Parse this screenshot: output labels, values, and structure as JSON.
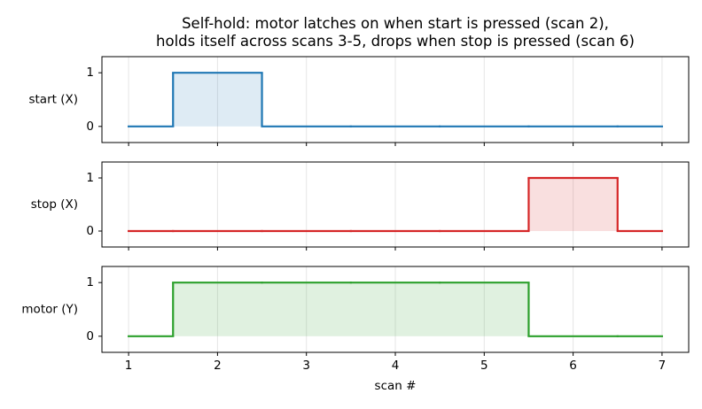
{
  "chart_data": [
    {
      "type": "line",
      "step": "mid",
      "title": "Self-hold: motor latches on when start is pressed (scan 2),\nholds itself across scans 3-5, drops when stop is pressed (scan 6)",
      "ylabel": "start (X)",
      "x": [
        1,
        2,
        3,
        4,
        5,
        6,
        7
      ],
      "values": [
        0,
        1,
        0,
        0,
        0,
        0,
        0
      ],
      "color": "#1f77b4",
      "xlim": [
        0.7,
        7.3
      ],
      "xticks": [
        1,
        2,
        3,
        4,
        5,
        6,
        7
      ],
      "ylim": [
        -0.3,
        1.3
      ],
      "yticks": [
        0,
        1
      ],
      "grid": true
    },
    {
      "type": "line",
      "step": "mid",
      "ylabel": "stop (X)",
      "x": [
        1,
        2,
        3,
        4,
        5,
        6,
        7
      ],
      "values": [
        0,
        0,
        0,
        0,
        0,
        1,
        0
      ],
      "color": "#d62728",
      "xlim": [
        0.7,
        7.3
      ],
      "xticks": [
        1,
        2,
        3,
        4,
        5,
        6,
        7
      ],
      "ylim": [
        -0.3,
        1.3
      ],
      "yticks": [
        0,
        1
      ],
      "grid": true
    },
    {
      "type": "line",
      "step": "mid",
      "ylabel": "motor (Y)",
      "xlabel": "scan #",
      "x": [
        1,
        2,
        3,
        4,
        5,
        6,
        7
      ],
      "values": [
        0,
        1,
        1,
        1,
        1,
        0,
        0
      ],
      "color": "#2ca02c",
      "xlim": [
        0.7,
        7.3
      ],
      "xticks": [
        1,
        2,
        3,
        4,
        5,
        6,
        7
      ],
      "ylim": [
        -0.3,
        1.3
      ],
      "yticks": [
        0,
        1
      ],
      "grid": true
    }
  ]
}
